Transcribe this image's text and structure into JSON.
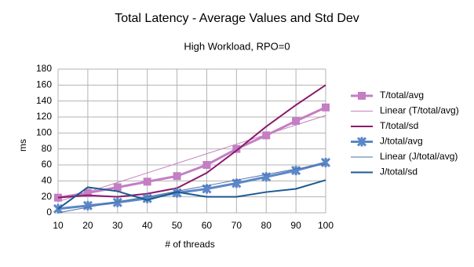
{
  "chart_data": {
    "type": "line",
    "title": "Total Latency - Average Values and Std Dev",
    "subtitle": "High Workload, RPO=0",
    "x_label": "# of threads",
    "y_label": "ms",
    "x": [
      10,
      20,
      30,
      40,
      50,
      60,
      70,
      80,
      90,
      100
    ],
    "xlim": [
      10,
      100
    ],
    "xticks": [
      10,
      20,
      30,
      40,
      50,
      60,
      70,
      80,
      90,
      100
    ],
    "ylim": [
      0,
      180
    ],
    "yticks": [
      0,
      20,
      40,
      60,
      80,
      100,
      120,
      140,
      160,
      180
    ],
    "grid": true,
    "legend": "right",
    "series": [
      {
        "name": "T/total/avg",
        "color": "#c47ec4",
        "marker": "square",
        "width": 3,
        "values": [
          19,
          25,
          32,
          39,
          46,
          60,
          80,
          97,
          115,
          132
        ]
      },
      {
        "name": "Linear (T/total/avg)",
        "color": "#c283bf",
        "marker": "none",
        "width": 1,
        "values": [
          14,
          26,
          38,
          50,
          62,
          74,
          86,
          98,
          110,
          122
        ]
      },
      {
        "name": "T/total/sd",
        "color": "#8b1a6b",
        "marker": "none",
        "width": 2,
        "values": [
          19,
          22,
          20,
          24,
          31,
          50,
          78,
          108,
          135,
          160
        ]
      },
      {
        "name": "J/total/avg",
        "color": "#5b87c8",
        "marker": "star",
        "width": 3,
        "values": [
          5,
          9,
          13,
          18,
          25,
          30,
          37,
          45,
          53,
          63
        ]
      },
      {
        "name": "Linear (J/total/avg)",
        "color": "#4a6fa8",
        "marker": "none",
        "width": 1,
        "values": [
          0,
          7,
          14,
          20,
          27,
          34,
          41,
          48,
          55,
          61
        ]
      },
      {
        "name": "J/total/sd",
        "color": "#1c5a91",
        "marker": "none",
        "width": 2,
        "values": [
          5,
          32,
          27,
          16,
          26,
          20,
          20,
          26,
          30,
          41
        ]
      }
    ]
  }
}
